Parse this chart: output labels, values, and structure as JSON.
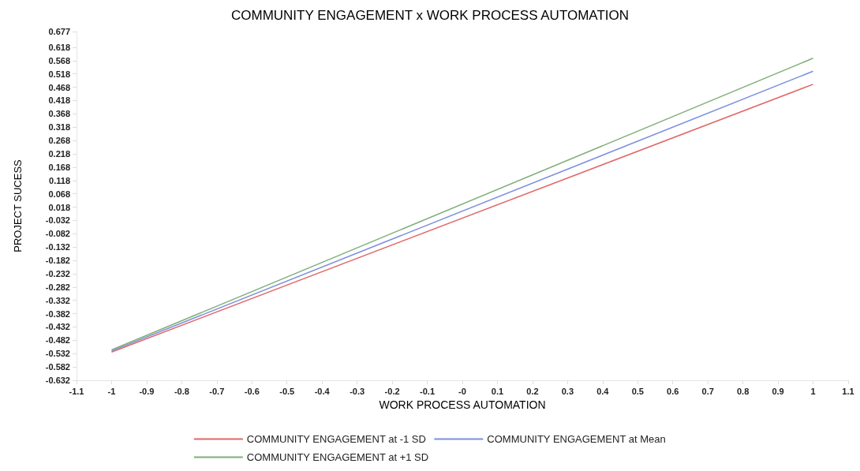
{
  "chart_data": {
    "type": "line",
    "title": "COMMUNITY ENGAGEMENT x WORK PROCESS AUTOMATION",
    "xlabel": "WORK PROCESS AUTOMATION",
    "ylabel": "PROJECT SUCESS",
    "x": [
      -1,
      1
    ],
    "series": [
      {
        "name": "COMMUNITY ENGAGEMENT at -1 SD",
        "color": "#e06666",
        "values": [
          -0.526,
          0.479
        ]
      },
      {
        "name": "COMMUNITY ENGAGEMENT at Mean",
        "color": "#7b8fe0",
        "values": [
          -0.522,
          0.528
        ]
      },
      {
        "name": "COMMUNITY ENGAGEMENT at +1 SD",
        "color": "#7fae78",
        "values": [
          -0.518,
          0.577
        ]
      }
    ],
    "xlim": [
      -1.1,
      1.1
    ],
    "xticks": [
      -1.1,
      -1,
      -0.9,
      -0.8,
      -0.7,
      -0.6,
      -0.5,
      -0.4,
      -0.3,
      -0.2,
      -0.1,
      {
        "value": 0,
        "label": "-0"
      },
      0.1,
      0.2,
      0.3,
      0.4,
      0.5,
      0.6,
      0.7,
      0.8,
      0.9,
      1,
      1.1
    ],
    "ylim": [
      -0.632,
      0.677
    ],
    "yticks": [
      -0.632,
      -0.582,
      -0.532,
      -0.482,
      -0.432,
      -0.382,
      -0.332,
      -0.282,
      -0.232,
      -0.182,
      -0.132,
      -0.082,
      -0.032,
      0.018,
      0.068,
      0.118,
      0.168,
      0.218,
      0.268,
      0.318,
      0.368,
      0.418,
      0.468,
      0.518,
      0.568,
      0.618,
      0.677
    ],
    "grid": false,
    "legend": "bottom",
    "marker": "none",
    "line_style": "solid"
  }
}
